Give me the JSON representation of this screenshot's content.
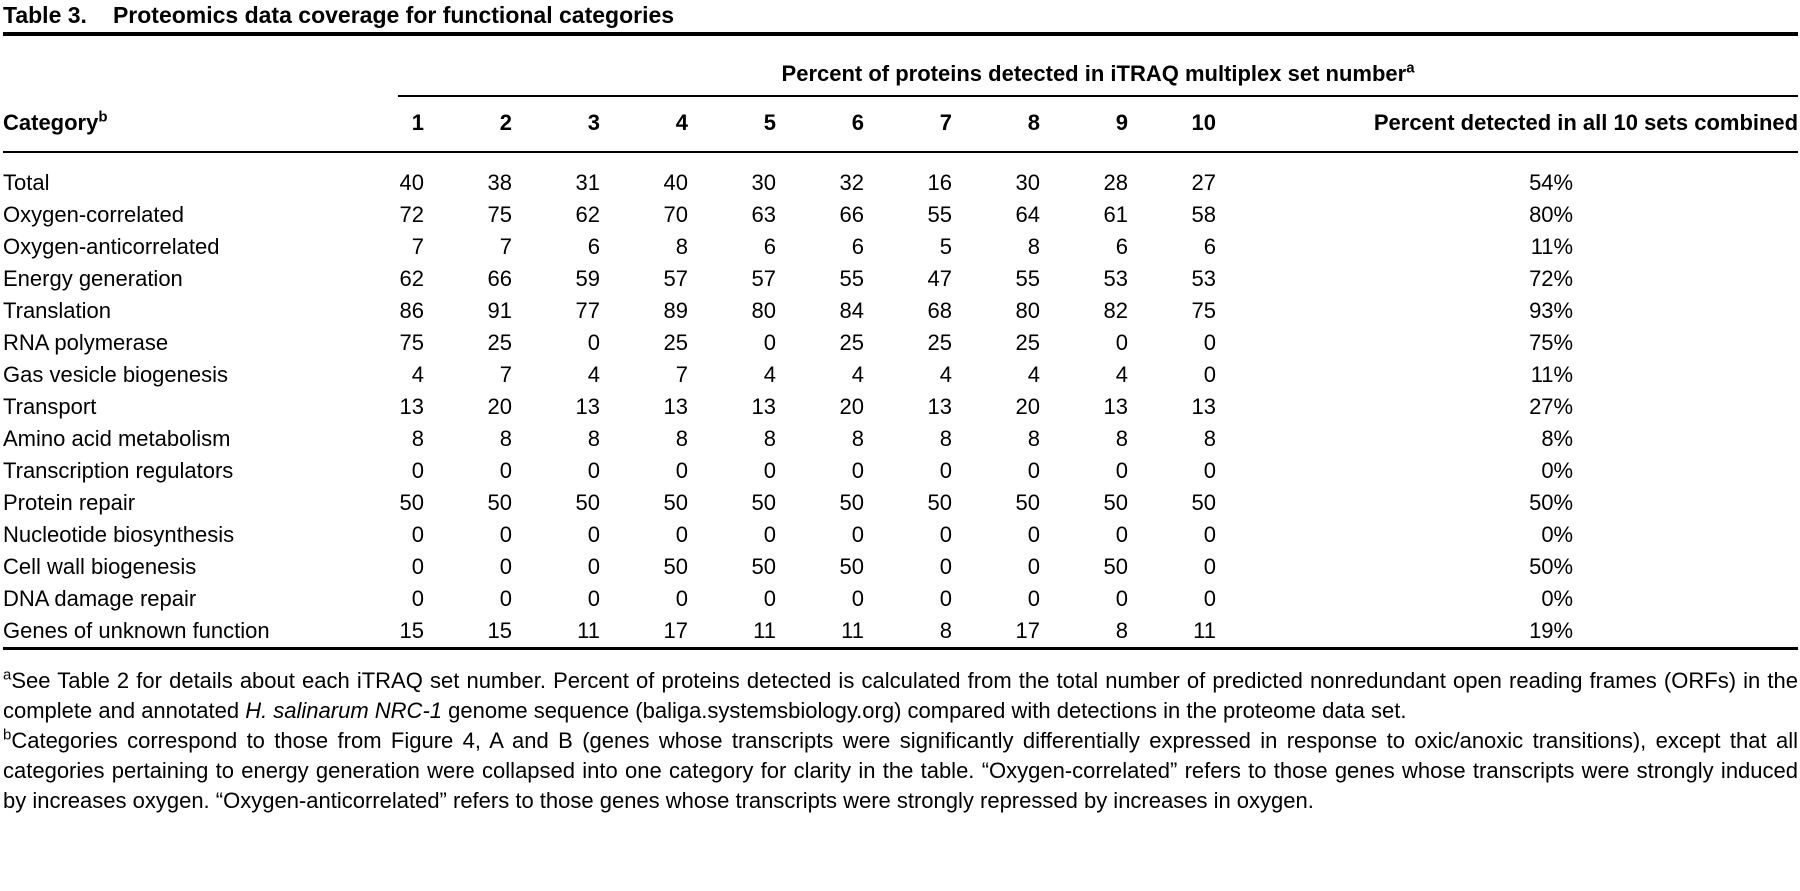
{
  "colors": {
    "text": "#000000",
    "background": "#ffffff",
    "rule": "#000000"
  },
  "title": {
    "label": "Table 3.",
    "text": "Proteomics data coverage for functional categories"
  },
  "table": {
    "spanner_header": "Percent of proteins detected in iTRAQ multiplex set number",
    "spanner_sup": "a",
    "category_header": "Category",
    "category_sup": "b",
    "set_numbers": [
      "1",
      "2",
      "3",
      "4",
      "5",
      "6",
      "7",
      "8",
      "9",
      "10"
    ],
    "combined_header": "Percent detected in all 10 sets combined",
    "rows": [
      {
        "category": "Total",
        "values": [
          40,
          38,
          31,
          40,
          30,
          32,
          16,
          30,
          28,
          27
        ],
        "combined": "54%"
      },
      {
        "category": "Oxygen-correlated",
        "values": [
          72,
          75,
          62,
          70,
          63,
          66,
          55,
          64,
          61,
          58
        ],
        "combined": "80%"
      },
      {
        "category": "Oxygen-anticorrelated",
        "values": [
          7,
          7,
          6,
          8,
          6,
          6,
          5,
          8,
          6,
          6
        ],
        "combined": "11%"
      },
      {
        "category": "Energy generation",
        "values": [
          62,
          66,
          59,
          57,
          57,
          55,
          47,
          55,
          53,
          53
        ],
        "combined": "72%"
      },
      {
        "category": "Translation",
        "values": [
          86,
          91,
          77,
          89,
          80,
          84,
          68,
          80,
          82,
          75
        ],
        "combined": "93%"
      },
      {
        "category": "RNA polymerase",
        "values": [
          75,
          25,
          0,
          25,
          0,
          25,
          25,
          25,
          0,
          0
        ],
        "combined": "75%"
      },
      {
        "category": "Gas vesicle biogenesis",
        "values": [
          4,
          7,
          4,
          7,
          4,
          4,
          4,
          4,
          4,
          0
        ],
        "combined": "11%"
      },
      {
        "category": "Transport",
        "values": [
          13,
          20,
          13,
          13,
          13,
          20,
          13,
          20,
          13,
          13
        ],
        "combined": "27%"
      },
      {
        "category": "Amino acid metabolism",
        "values": [
          8,
          8,
          8,
          8,
          8,
          8,
          8,
          8,
          8,
          8
        ],
        "combined": "8%"
      },
      {
        "category": "Transcription regulators",
        "values": [
          0,
          0,
          0,
          0,
          0,
          0,
          0,
          0,
          0,
          0
        ],
        "combined": "0%"
      },
      {
        "category": "Protein repair",
        "values": [
          50,
          50,
          50,
          50,
          50,
          50,
          50,
          50,
          50,
          50
        ],
        "combined": "50%"
      },
      {
        "category": "Nucleotide biosynthesis",
        "values": [
          0,
          0,
          0,
          0,
          0,
          0,
          0,
          0,
          0,
          0
        ],
        "combined": "0%"
      },
      {
        "category": "Cell wall biogenesis",
        "values": [
          0,
          0,
          0,
          50,
          50,
          50,
          0,
          0,
          50,
          0
        ],
        "combined": "50%"
      },
      {
        "category": "DNA damage repair",
        "values": [
          0,
          0,
          0,
          0,
          0,
          0,
          0,
          0,
          0,
          0
        ],
        "combined": "0%"
      },
      {
        "category": "Genes of unknown function",
        "values": [
          15,
          15,
          11,
          17,
          11,
          11,
          8,
          17,
          8,
          11
        ],
        "combined": "19%"
      }
    ]
  },
  "footnotes": {
    "a": {
      "marker": "a",
      "text_before_italic": "See Table 2 for details about each iTRAQ set number. Percent of proteins detected is calculated from the total number of predicted nonredundant open reading frames (ORFs) in the complete and annotated ",
      "italic_text": "H. salinarum NRC-1",
      "text_after_italic": " genome sequence (baliga.systemsbiology.org) compared with detections in the proteome data set."
    },
    "b": {
      "marker": "b",
      "text": "Categories correspond to those from Figure 4, A and B (genes whose transcripts were significantly differentially expressed in response to oxic/anoxic transitions), except that all categories pertaining to energy generation were collapsed into one category for clarity in the table. “Oxygen-correlated” refers to those genes whose transcripts were strongly induced by increases oxygen. “Oxygen-anticorrelated” refers to those genes whose transcripts were strongly repressed by increases in oxygen."
    }
  }
}
